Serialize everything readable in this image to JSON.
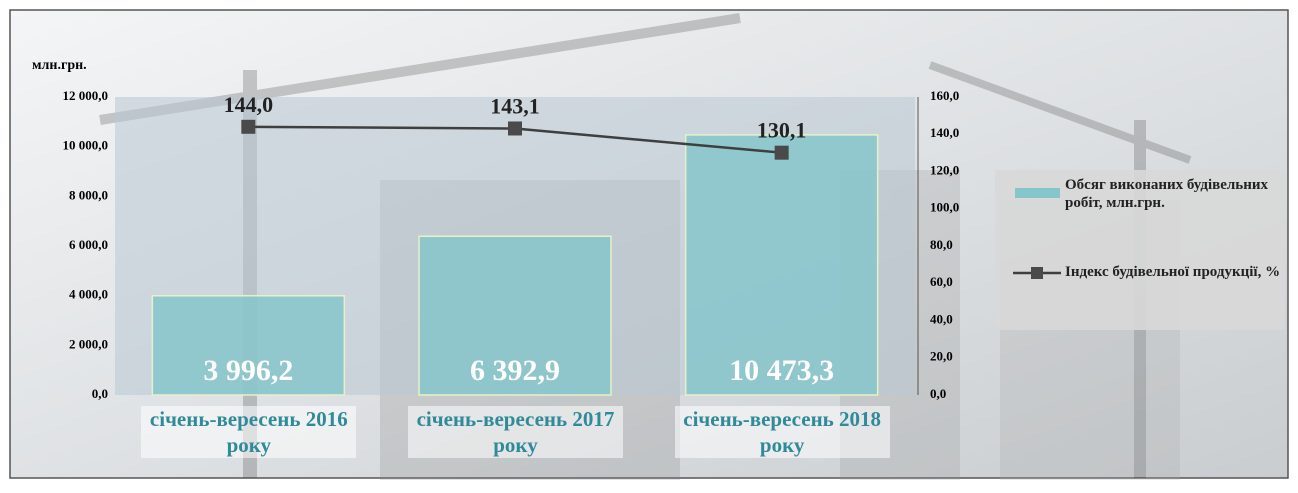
{
  "chart_data": {
    "type": "bar_line",
    "y_label": "млн.грн.",
    "categories": [
      "січень-вересень 2016 року",
      "січень-вересень 2017 року",
      "січень-вересень 2018 року"
    ],
    "series": [
      {
        "name": "Обсяг виконаних будівельних робіт, млн.грн.",
        "type": "bar",
        "color": "#86c6cb",
        "values": [
          3996.2,
          6392.9,
          10473.3
        ],
        "value_labels": [
          "3 996,2",
          "6 392,9",
          "10 473,3"
        ]
      },
      {
        "name": "Індекс будівельної продукції, %",
        "type": "line",
        "color": "#3f3f3f",
        "axis": "y2",
        "values": [
          144.0,
          143.1,
          130.1
        ],
        "value_labels": [
          "144,0",
          "143,1",
          "130,1"
        ]
      }
    ],
    "ylim": [
      0,
      12000
    ],
    "yticks": [
      {
        "value": 0,
        "label": "0,0"
      },
      {
        "value": 2000,
        "label": "2 000,0"
      },
      {
        "value": 4000,
        "label": "4 000,0"
      },
      {
        "value": 6000,
        "label": "6 000,0"
      },
      {
        "value": 8000,
        "label": "8 000,0"
      },
      {
        "value": 10000,
        "label": "10 000,0"
      },
      {
        "value": 12000,
        "label": "12 000,0"
      }
    ],
    "y2lim": [
      0,
      160
    ],
    "y2ticks": [
      {
        "value": 0,
        "label": "0,0"
      },
      {
        "value": 20,
        "label": "20,0"
      },
      {
        "value": 40,
        "label": "40,0"
      },
      {
        "value": 60,
        "label": "60,0"
      },
      {
        "value": 80,
        "label": "80,0"
      },
      {
        "value": 100,
        "label": "100,0"
      },
      {
        "value": 120,
        "label": "120,0"
      },
      {
        "value": 140,
        "label": "140,0"
      },
      {
        "value": 160,
        "label": "160,0"
      }
    ],
    "legend": "right"
  }
}
